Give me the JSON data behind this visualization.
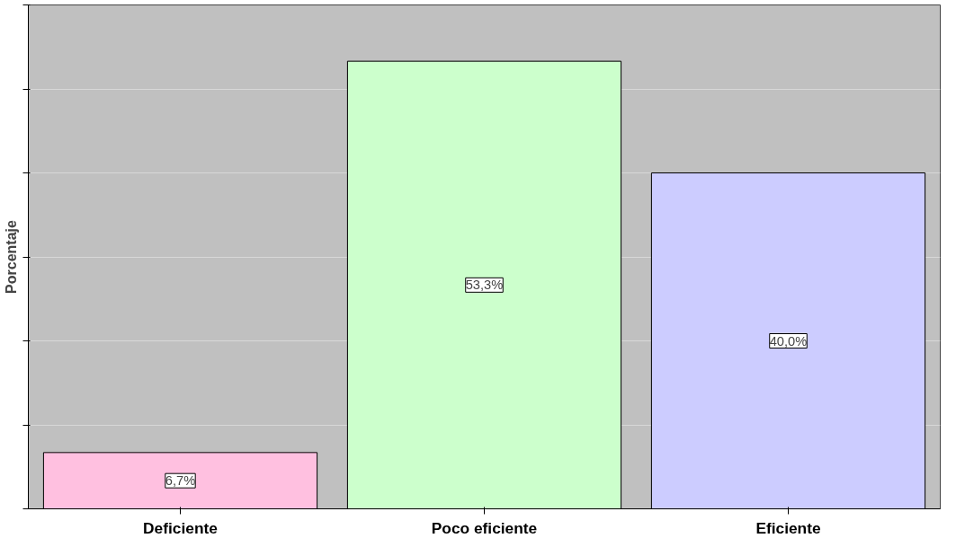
{
  "chart_data": {
    "type": "bar",
    "ylabel": "Porcentaje",
    "categories": [
      "Deficiente",
      "Poco eficiente",
      "Eficiente"
    ],
    "values": [
      6.7,
      53.3,
      40.0
    ],
    "colors": [
      "#ffc0e0",
      "#ccffcc",
      "#ccccff"
    ],
    "value_labels": [
      "6,7%",
      "53,3%",
      "40,0%"
    ],
    "ylim": [
      0,
      60
    ],
    "yticks": [
      {
        "value": 0,
        "label": null
      },
      {
        "value": 10,
        "label": null
      },
      {
        "value": 20,
        "label": null
      },
      {
        "value": 30,
        "label": null
      },
      {
        "value": 40,
        "label": null
      },
      {
        "value": 50,
        "label": null
      },
      {
        "value": 60,
        "label": null
      }
    ],
    "grid": "y",
    "tick_labels": "x"
  }
}
